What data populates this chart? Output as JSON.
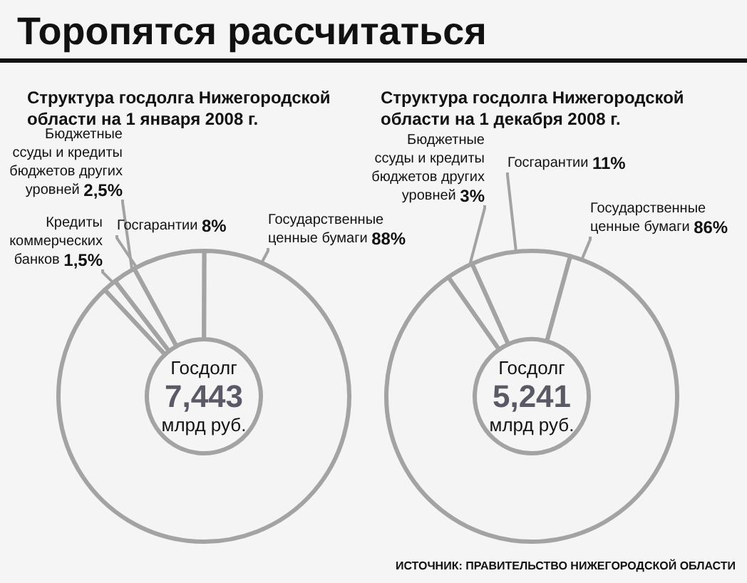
{
  "chart_data": [
    {
      "type": "donut",
      "title": "Торопятся рассчитаться",
      "subtitle": "Структура госдолга Нижегородской области на 1 января 2008 г.",
      "categories": [
        "Кредиты коммерческих банков",
        "Бюджетные ссуды и кредиты бюджетов других уровней",
        "Госгарантии",
        "Государственные ценные бумаги"
      ],
      "values": [
        1.5,
        2.5,
        8,
        88
      ],
      "value_labels": [
        "1,5%",
        "2,5%",
        "8%",
        "88%"
      ],
      "colors": [
        "#f4f4f4",
        "#f4f4f4",
        "#f4f4f4",
        "#f4f4f4"
      ],
      "annotations": [
        "Госдолг",
        "7,443",
        "млрд руб."
      ]
    },
    {
      "type": "donut",
      "subtitle": "Структура госдолга Нижегородской области на 1 декабря 2008 г.",
      "categories": [
        "Бюджетные ссуды и кредиты бюджетов других уровней",
        "Госгарантии",
        "Государственные ценные бумаги"
      ],
      "values": [
        3,
        11,
        86
      ],
      "value_labels": [
        "3%",
        "11%",
        "86%"
      ],
      "colors": [
        "#f4f4f4",
        "#f4f4f4",
        "#f4f4f4"
      ],
      "annotations": [
        "Госдолг",
        "5,241",
        "млрд руб.",
        "ИСТОЧНИК: ПРАВИТЕЛЬСТВО НИЖЕГОРОДСКОЙ ОБЛАСТИ"
      ]
    }
  ]
}
